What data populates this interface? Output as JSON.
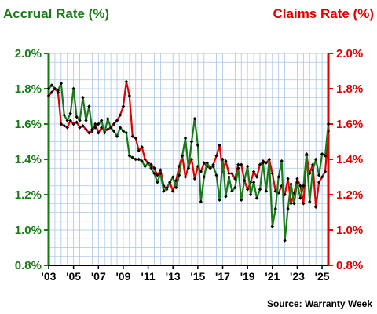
{
  "chart_data": {
    "type": "line",
    "title_left": "Accrual Rate (%)",
    "title_right": "Claims Rate (%)",
    "source": "Source: Warranty Week",
    "ylim": [
      0.8,
      2.0
    ],
    "xlim": [
      2003,
      2025.5
    ],
    "yticks_left": [
      "2.0%",
      "1.8%",
      "1.6%",
      "1.4%",
      "1.2%",
      "1.0%",
      "0.8%"
    ],
    "yticks_right": [
      "2.0%",
      "1.8%",
      "1.6%",
      "1.4%",
      "1.2%",
      "1.0%",
      "0.8%"
    ],
    "ytick_values": [
      2.0,
      1.8,
      1.6,
      1.4,
      1.2,
      1.0,
      0.8
    ],
    "xticks": [
      "'03",
      "'05",
      "'07",
      "'09",
      "'11",
      "'13",
      "'15",
      "'17",
      "'19",
      "'21",
      "'23",
      "'25"
    ],
    "xtick_values": [
      2003,
      2005,
      2007,
      2009,
      2011,
      2013,
      2015,
      2017,
      2019,
      2021,
      2023,
      2025
    ],
    "grid": true,
    "colors": {
      "accrual": "#1a7a1a",
      "claims": "#e00000",
      "grid": "#a8c4e6",
      "marker": "#000000"
    },
    "series": [
      {
        "name": "Accrual Rate (%)",
        "axis": "left",
        "x": [
          2003.0,
          2003.25,
          2003.5,
          2003.75,
          2004.0,
          2004.25,
          2004.5,
          2004.75,
          2005.0,
          2005.25,
          2005.5,
          2005.75,
          2006.0,
          2006.25,
          2006.5,
          2006.75,
          2007.0,
          2007.25,
          2007.5,
          2007.75,
          2008.0,
          2008.25,
          2008.5,
          2008.75,
          2009.0,
          2009.25,
          2009.5,
          2009.75,
          2010.0,
          2010.25,
          2010.5,
          2010.75,
          2011.0,
          2011.25,
          2011.5,
          2011.75,
          2012.0,
          2012.25,
          2012.5,
          2012.75,
          2013.0,
          2013.25,
          2013.5,
          2013.75,
          2014.0,
          2014.25,
          2014.5,
          2014.75,
          2015.0,
          2015.25,
          2015.5,
          2015.75,
          2016.0,
          2016.25,
          2016.5,
          2016.75,
          2017.0,
          2017.25,
          2017.5,
          2017.75,
          2018.0,
          2018.25,
          2018.5,
          2018.75,
          2019.0,
          2019.25,
          2019.5,
          2019.75,
          2020.0,
          2020.25,
          2020.5,
          2020.75,
          2021.0,
          2021.25,
          2021.5,
          2021.75,
          2022.0,
          2022.25,
          2022.5,
          2022.75,
          2023.0,
          2023.25,
          2023.5,
          2023.75,
          2024.0,
          2024.25,
          2024.5,
          2024.75,
          2025.0,
          2025.25,
          2025.5
        ],
        "y": [
          1.8,
          1.82,
          1.8,
          1.79,
          1.83,
          1.65,
          1.62,
          1.66,
          1.8,
          1.64,
          1.62,
          1.75,
          1.62,
          1.7,
          1.57,
          1.58,
          1.6,
          1.62,
          1.55,
          1.63,
          1.58,
          1.56,
          1.53,
          1.58,
          1.56,
          1.55,
          1.42,
          1.41,
          1.4,
          1.4,
          1.39,
          1.36,
          1.38,
          1.35,
          1.32,
          1.27,
          1.32,
          1.22,
          1.24,
          1.27,
          1.3,
          1.24,
          1.31,
          1.42,
          1.52,
          1.35,
          1.5,
          1.63,
          1.48,
          1.16,
          1.3,
          1.38,
          1.35,
          1.36,
          1.31,
          1.17,
          1.4,
          1.19,
          1.3,
          1.22,
          1.24,
          1.35,
          1.17,
          1.28,
          1.36,
          1.2,
          1.27,
          1.18,
          1.23,
          1.38,
          1.22,
          1.4,
          1.02,
          1.12,
          1.3,
          1.39,
          0.94,
          1.12,
          1.26,
          1.15,
          1.27,
          1.18,
          1.25,
          1.43,
          1.16,
          1.34,
          1.4,
          1.31,
          1.43,
          1.42,
          1.6
        ]
      },
      {
        "name": "Claims Rate (%)",
        "axis": "right",
        "x": [
          2003.0,
          2003.25,
          2003.5,
          2003.75,
          2004.0,
          2004.25,
          2004.5,
          2004.75,
          2005.0,
          2005.25,
          2005.5,
          2005.75,
          2006.0,
          2006.25,
          2006.5,
          2006.75,
          2007.0,
          2007.25,
          2007.5,
          2007.75,
          2008.0,
          2008.25,
          2008.5,
          2008.75,
          2009.0,
          2009.25,
          2009.5,
          2009.75,
          2010.0,
          2010.25,
          2010.5,
          2010.75,
          2011.0,
          2011.25,
          2011.5,
          2011.75,
          2012.0,
          2012.25,
          2012.5,
          2012.75,
          2013.0,
          2013.25,
          2013.5,
          2013.75,
          2014.0,
          2014.25,
          2014.5,
          2014.75,
          2015.0,
          2015.25,
          2015.5,
          2015.75,
          2016.0,
          2016.25,
          2016.5,
          2016.75,
          2017.0,
          2017.25,
          2017.5,
          2017.75,
          2018.0,
          2018.25,
          2018.5,
          2018.75,
          2019.0,
          2019.25,
          2019.5,
          2019.75,
          2020.0,
          2020.25,
          2020.5,
          2020.75,
          2021.0,
          2021.25,
          2021.5,
          2021.75,
          2022.0,
          2022.25,
          2022.5,
          2022.75,
          2023.0,
          2023.25,
          2023.5,
          2023.75,
          2024.0,
          2024.25,
          2024.5,
          2024.75,
          2025.0,
          2025.25,
          2025.5
        ],
        "y": [
          1.76,
          1.78,
          1.8,
          1.78,
          1.6,
          1.59,
          1.58,
          1.62,
          1.6,
          1.61,
          1.58,
          1.59,
          1.57,
          1.55,
          1.56,
          1.6,
          1.55,
          1.58,
          1.56,
          1.57,
          1.58,
          1.6,
          1.62,
          1.65,
          1.7,
          1.84,
          1.76,
          1.53,
          1.52,
          1.45,
          1.47,
          1.4,
          1.38,
          1.37,
          1.35,
          1.31,
          1.34,
          1.25,
          1.23,
          1.27,
          1.22,
          1.28,
          1.36,
          1.42,
          1.3,
          1.36,
          1.4,
          1.29,
          1.36,
          1.33,
          1.38,
          1.36,
          1.35,
          1.37,
          1.42,
          1.48,
          1.33,
          1.39,
          1.32,
          1.32,
          1.29,
          1.37,
          1.37,
          1.28,
          1.23,
          1.27,
          1.33,
          1.3,
          1.37,
          1.39,
          1.38,
          1.4,
          1.32,
          1.22,
          1.21,
          1.25,
          1.2,
          1.29,
          1.15,
          1.21,
          1.29,
          1.25,
          1.15,
          1.42,
          1.32,
          1.37,
          1.13,
          1.27,
          1.3,
          1.33,
          1.56
        ]
      }
    ]
  }
}
